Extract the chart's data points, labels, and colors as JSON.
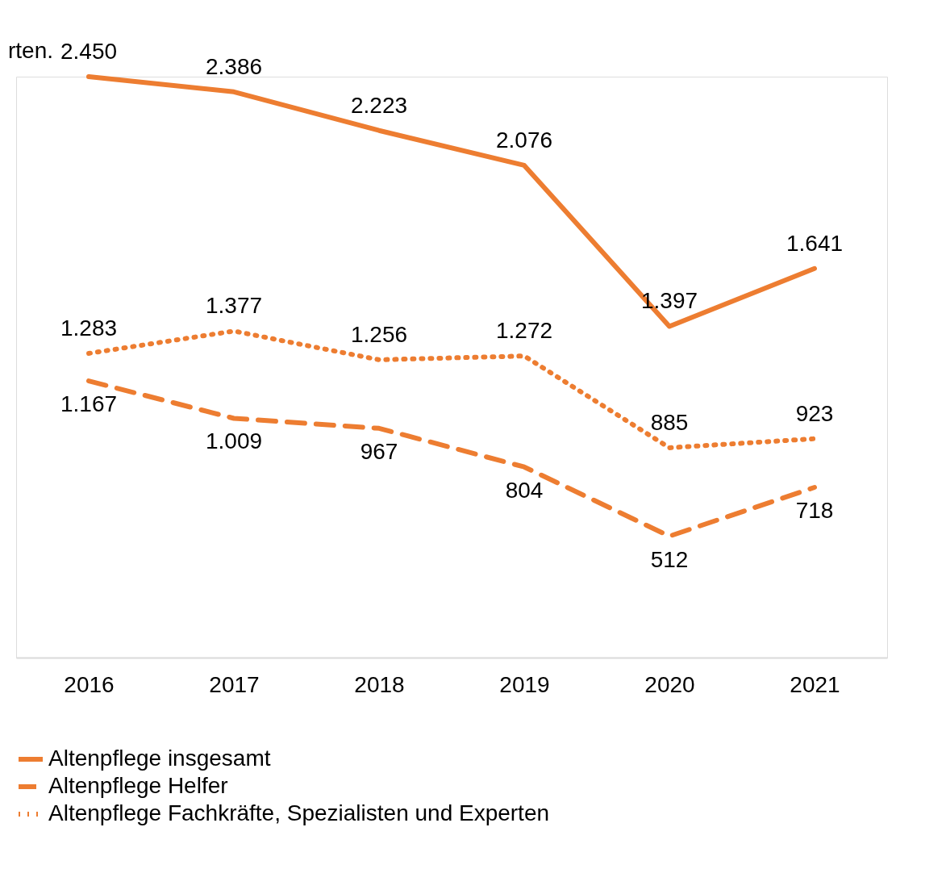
{
  "chart_data": {
    "type": "line",
    "categories": [
      "2016",
      "2017",
      "2018",
      "2019",
      "2020",
      "2021"
    ],
    "series": [
      {
        "name": "Altenpflege insgesamt",
        "color": "#ed7d31",
        "line_style": "solid",
        "values": [
          2450,
          2386,
          2223,
          2076,
          1397,
          1641
        ],
        "value_labels": [
          "2.450",
          "2.386",
          "2.223",
          "2.076",
          "1.397",
          "1.641"
        ]
      },
      {
        "name": "Altenpflege Helfer",
        "color": "#ed7d31",
        "line_style": "dashed",
        "values": [
          1167,
          1009,
          967,
          804,
          512,
          718
        ],
        "value_labels": [
          "1.167",
          "1.009",
          "967",
          "804",
          "512",
          "718"
        ]
      },
      {
        "name": "Altenpflege Fachkräfte, Spezialisten und Experten",
        "color": "#ed7d31",
        "line_style": "dotted",
        "values": [
          1283,
          1377,
          1256,
          1272,
          885,
          923
        ],
        "value_labels": [
          "1.283",
          "1.377",
          "1.256",
          "1.272",
          "885",
          "923"
        ]
      }
    ],
    "legend": "bottom",
    "grid": false,
    "marker": "none",
    "tick_labels": "x",
    "annotations": [
      "rten."
    ]
  }
}
